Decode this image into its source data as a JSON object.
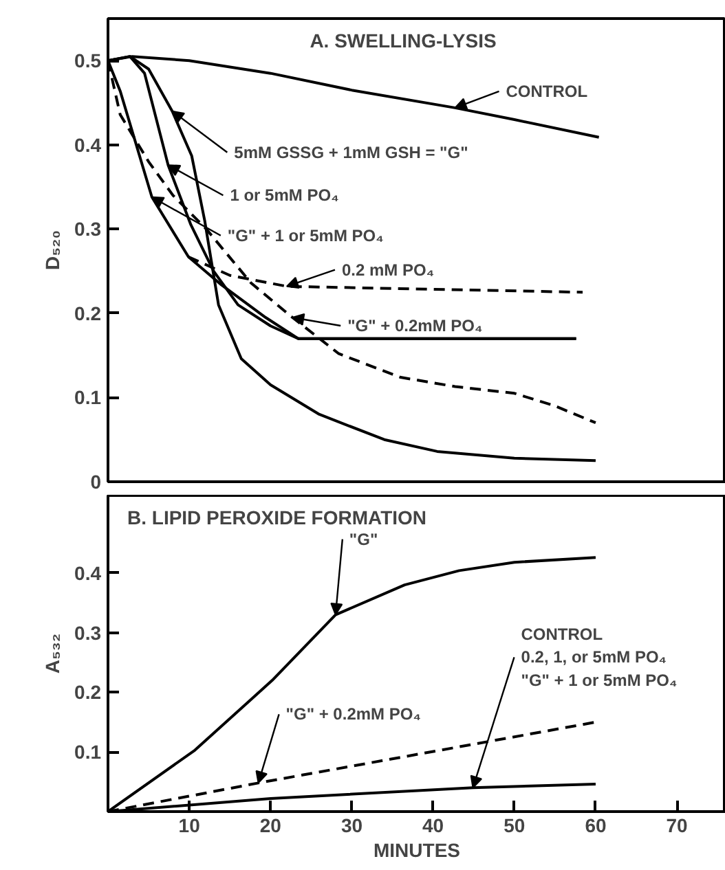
{
  "chart_data": [
    {
      "type": "line",
      "title": "A. SWELLING-LYSIS",
      "ylabel": "D₅₂₀",
      "xlim": [
        0,
        76
      ],
      "ylim": [
        0,
        0.55
      ],
      "yticks": [
        0,
        0.1,
        0.2,
        0.3,
        0.4,
        0.5
      ],
      "tick_labels": "y",
      "grid": false,
      "series": [
        {
          "color": "#000000",
          "line_style": "solid",
          "x": [
            0,
            3,
            10,
            20,
            30,
            42.7,
            50,
            60.4
          ],
          "values": [
            0.5,
            0.505,
            0.5,
            0.485,
            0.465,
            0.444,
            0.43,
            0.409
          ]
        },
        {
          "color": "#000000",
          "line_style": "solid",
          "x": [
            0,
            2.7,
            5,
            7.9,
            10.3,
            11.9,
            13.6,
            16.4,
            20,
            26,
            34,
            40.5,
            50,
            60
          ],
          "values": [
            0.5,
            0.505,
            0.49,
            0.44,
            0.387,
            0.31,
            0.21,
            0.146,
            0.115,
            0.08,
            0.05,
            0.036,
            0.028,
            0.025
          ]
        },
        {
          "color": "#000000",
          "line_style": "solid",
          "x": [
            0,
            2.7,
            4.5,
            7.4,
            10.2,
            13,
            16,
            20,
            23.4,
            57.6
          ],
          "values": [
            0.5,
            0.505,
            0.485,
            0.376,
            0.305,
            0.25,
            0.21,
            0.185,
            0.17,
            0.17
          ]
        },
        {
          "color": "#000000",
          "line_style": "solid",
          "x": [
            0,
            1.5,
            5.4,
            9.9,
            13.8,
            19.4,
            23.4,
            57.6
          ],
          "values": [
            0.5,
            0.464,
            0.338,
            0.267,
            0.235,
            0.195,
            0.17,
            0.17
          ]
        },
        {
          "color": "#000000",
          "line_style": "dashed",
          "x": [
            9.9,
            15,
            22,
            58.4
          ],
          "values": [
            0.267,
            0.245,
            0.232,
            0.225
          ]
        },
        {
          "color": "#000000",
          "line_style": "dashed",
          "x": [
            0,
            1.5,
            5,
            8,
            12.1,
            17.6,
            22.7,
            28.4,
            36,
            42.7,
            50,
            55,
            60
          ],
          "values": [
            0.5,
            0.436,
            0.38,
            0.34,
            0.3,
            0.236,
            0.195,
            0.152,
            0.124,
            0.113,
            0.105,
            0.09,
            0.07
          ]
        }
      ],
      "annotations": [
        {
          "text": "CONTROL",
          "x": 42.7,
          "y": 0.444
        },
        {
          "text": "5mM GSSG + 1mM GSH = \"G\"",
          "x": 7.9,
          "y": 0.44
        },
        {
          "text": "1 or 5mM PO₄",
          "x": 7.4,
          "y": 0.376
        },
        {
          "text": "\"G\" + 1 or 5mM PO₄",
          "x": 5.4,
          "y": 0.338
        },
        {
          "text": "0.2 mM PO₄",
          "x": 22,
          "y": 0.232
        },
        {
          "text": "\"G\" + 0.2mM PO₄",
          "x": 22.7,
          "y": 0.195
        }
      ]
    },
    {
      "type": "line",
      "title": "B. LIPID PEROXIDE FORMATION",
      "xlabel": "MINUTES",
      "ylabel": "A₅₃₂",
      "xlim": [
        0,
        76
      ],
      "ylim": [
        0,
        0.53
      ],
      "xticks": [
        10,
        20,
        30,
        40,
        50,
        60,
        70
      ],
      "yticks": [
        0.1,
        0.2,
        0.3,
        0.4
      ],
      "grid": false,
      "series": [
        {
          "color": "#000000",
          "line_style": "solid",
          "x": [
            0,
            10.7,
            20.2,
            28,
            36.5,
            43.2,
            50,
            60
          ],
          "values": [
            0,
            0.103,
            0.22,
            0.33,
            0.38,
            0.404,
            0.418,
            0.426
          ]
        },
        {
          "color": "#000000",
          "line_style": "dashed",
          "x": [
            0,
            18.5,
            45.4,
            60
          ],
          "values": [
            0,
            0.048,
            0.114,
            0.15
          ]
        },
        {
          "color": "#000000",
          "line_style": "solid",
          "x": [
            0,
            20,
            44.9,
            60
          ],
          "values": [
            0,
            0.022,
            0.04,
            0.046
          ]
        }
      ],
      "annotations": [
        {
          "text": "\"G\"",
          "x": 28,
          "y": 0.33
        },
        {
          "text": "\"G\" + 0.2mM PO₄",
          "x": 18.5,
          "y": 0.048
        },
        {
          "text": "CONTROL\n0.2, 1, or 5mM PO₄\n\"G\" + 1 or 5mM PO₄",
          "x": 44.9,
          "y": 0.04
        }
      ]
    }
  ]
}
